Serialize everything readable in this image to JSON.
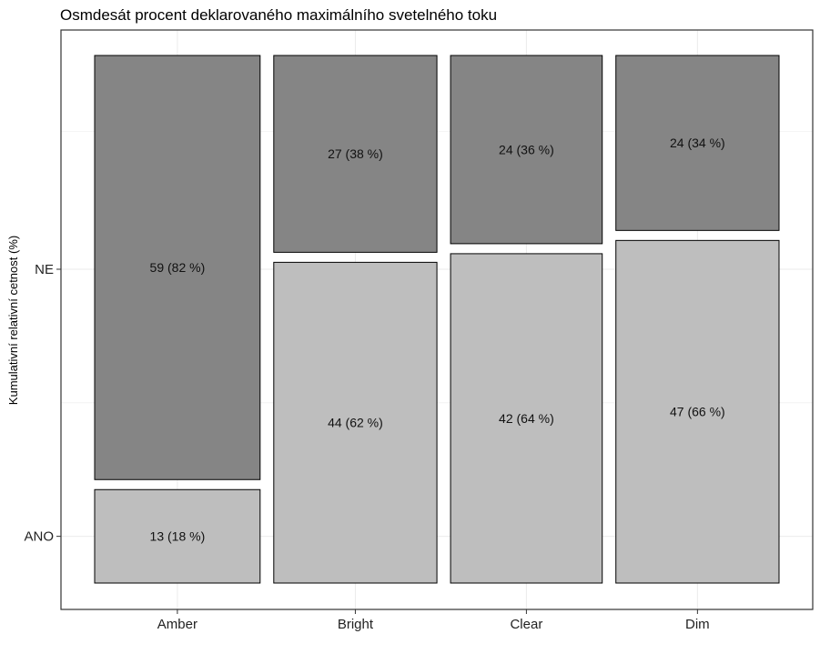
{
  "chart_data": {
    "type": "mosaic",
    "title": "Osmdesát procent deklarovaného maximálního svetelného toku",
    "xlabel": "",
    "ylabel": "Kumulativní relativní cetnost (%)",
    "categories": [
      "Amber",
      "Bright",
      "Clear",
      "Dim"
    ],
    "y_levels": [
      "ANO",
      "NE"
    ],
    "series": [
      {
        "name": "ANO",
        "values": [
          13,
          44,
          42,
          47
        ],
        "labels": [
          "13 (18 %)",
          "44 (62 %)",
          "42 (64 %)",
          "47 (66 %)"
        ],
        "color": "#bebebe"
      },
      {
        "name": "NE",
        "values": [
          59,
          27,
          24,
          24
        ],
        "labels": [
          "59 (82 %)",
          "27 (38 %)",
          "24 (36 %)",
          "24 (34 %)"
        ],
        "color": "#858585"
      }
    ],
    "grid": true
  }
}
